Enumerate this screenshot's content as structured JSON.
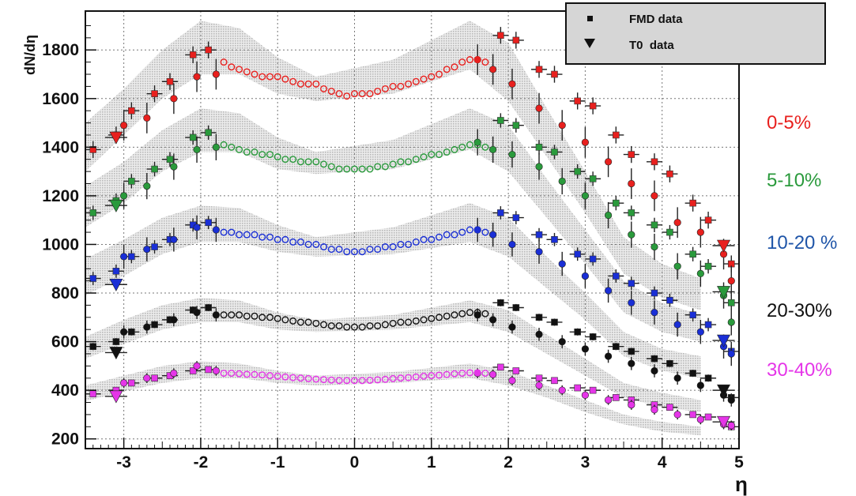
{
  "chart_data": {
    "type": "scatter",
    "title": "",
    "xlabel": "η",
    "ylabel": "dN/dη",
    "xlim": [
      -3.5,
      5.0
    ],
    "ylim": [
      160,
      1960
    ],
    "x_ticks": [
      "-3",
      "-2",
      "-1",
      "0",
      "1",
      "2",
      "3",
      "4",
      "5"
    ],
    "y_ticks": [
      "200",
      "400",
      "600",
      "800",
      "1000",
      "1200",
      "1400",
      "1600",
      "1800"
    ],
    "grid": true,
    "legend": {
      "position": "top-right",
      "entries": [
        {
          "label": "FMD data",
          "marker": "square"
        },
        {
          "label": "T0  data",
          "marker": "triangle-down"
        }
      ]
    },
    "series": [
      {
        "name": "0-5%",
        "color": "#e8201e",
        "fmd_x": [
          -3.4,
          -3.1,
          -2.9,
          -2.6,
          -2.4,
          -2.1,
          -1.9,
          1.9,
          2.1,
          2.4,
          2.6,
          2.9,
          3.1,
          3.4,
          3.6,
          3.9,
          4.1,
          4.4,
          4.6,
          4.9
        ],
        "fmd_y": [
          1390,
          1450,
          1550,
          1620,
          1670,
          1780,
          1800,
          1860,
          1840,
          1720,
          1700,
          1590,
          1570,
          1450,
          1370,
          1340,
          1290,
          1170,
          1100,
          920
        ],
        "spd_x": [
          -3.0,
          -2.7,
          -2.35,
          -2.05,
          -1.8,
          1.6,
          1.8,
          2.05,
          2.4,
          2.7,
          3.0,
          3.3,
          3.6,
          3.9,
          4.2,
          4.5,
          4.8,
          4.9
        ],
        "spd_y": [
          1490,
          1520,
          1600,
          1690,
          1700,
          1760,
          1720,
          1660,
          1560,
          1490,
          1420,
          1340,
          1250,
          1200,
          1090,
          1050,
          960,
          850
        ],
        "tpc_x": [
          -1.7,
          -1.6,
          -1.5,
          -1.4,
          -1.3,
          -1.2,
          -1.1,
          -1.0,
          -0.9,
          -0.8,
          -0.7,
          -0.6,
          -0.5,
          -0.4,
          -0.3,
          -0.2,
          -0.1,
          0.0,
          0.1,
          0.2,
          0.3,
          0.4,
          0.5,
          0.6,
          0.7,
          0.8,
          0.9,
          1.0,
          1.1,
          1.2,
          1.3,
          1.4,
          1.5,
          1.6,
          1.7
        ],
        "tpc_y": [
          1750,
          1730,
          1720,
          1710,
          1700,
          1690,
          1690,
          1690,
          1680,
          1670,
          1660,
          1660,
          1660,
          1640,
          1630,
          1620,
          1610,
          1620,
          1620,
          1620,
          1630,
          1640,
          1650,
          1650,
          1660,
          1670,
          1680,
          1690,
          1700,
          1720,
          1730,
          1750,
          1760,
          1760,
          1750
        ],
        "t0_x": [
          -3.1,
          4.8
        ],
        "t0_y": [
          1440,
          995
        ],
        "band_upper": [
          1500,
          1640,
          1800,
          1920,
          1890,
          1770,
          1690,
          1760,
          1920,
          1830,
          1560,
          1300,
          1030,
          920,
          860
        ],
        "band_lower": [
          1300,
          1450,
          1600,
          1700,
          1700,
          1620,
          1590,
          1620,
          1720,
          1590,
          1360,
          1130,
          880,
          780,
          730
        ]
      },
      {
        "name": "5-10%",
        "color": "#2a9a3c",
        "fmd_x": [
          -3.4,
          -3.1,
          -2.9,
          -2.6,
          -2.4,
          -2.1,
          -1.9,
          1.9,
          2.1,
          2.4,
          2.6,
          2.9,
          3.1,
          3.4,
          3.6,
          3.9,
          4.1,
          4.4,
          4.6,
          4.9
        ],
        "fmd_y": [
          1130,
          1180,
          1260,
          1310,
          1350,
          1440,
          1460,
          1510,
          1490,
          1400,
          1380,
          1300,
          1270,
          1170,
          1130,
          1080,
          1050,
          960,
          910,
          760
        ],
        "spd_x": [
          -3.0,
          -2.7,
          -2.35,
          -2.05,
          -1.8,
          1.6,
          1.8,
          2.05,
          2.4,
          2.7,
          3.0,
          3.3,
          3.6,
          3.9,
          4.2,
          4.5,
          4.8,
          4.9
        ],
        "spd_y": [
          1200,
          1240,
          1320,
          1390,
          1400,
          1420,
          1390,
          1370,
          1320,
          1260,
          1200,
          1120,
          1040,
          990,
          910,
          880,
          790,
          680
        ],
        "tpc_x": [
          -1.7,
          -1.6,
          -1.5,
          -1.4,
          -1.3,
          -1.2,
          -1.1,
          -1.0,
          -0.9,
          -0.8,
          -0.7,
          -0.6,
          -0.5,
          -0.4,
          -0.3,
          -0.2,
          -0.1,
          0.0,
          0.1,
          0.2,
          0.3,
          0.4,
          0.5,
          0.6,
          0.7,
          0.8,
          0.9,
          1.0,
          1.1,
          1.2,
          1.3,
          1.4,
          1.5,
          1.6,
          1.7
        ],
        "tpc_y": [
          1410,
          1400,
          1390,
          1380,
          1380,
          1370,
          1370,
          1360,
          1350,
          1350,
          1340,
          1340,
          1340,
          1330,
          1320,
          1310,
          1310,
          1310,
          1310,
          1310,
          1320,
          1320,
          1330,
          1340,
          1340,
          1350,
          1360,
          1370,
          1370,
          1380,
          1390,
          1400,
          1410,
          1410,
          1400
        ],
        "t0_x": [
          -3.1,
          4.8
        ],
        "t0_y": [
          1160,
          805
        ],
        "band_upper": [
          1240,
          1340,
          1470,
          1560,
          1540,
          1440,
          1380,
          1430,
          1560,
          1490,
          1270,
          1060,
          850,
          760,
          710
        ],
        "band_lower": [
          1070,
          1170,
          1300,
          1380,
          1380,
          1310,
          1290,
          1310,
          1390,
          1300,
          1110,
          920,
          720,
          640,
          600
        ]
      },
      {
        "name": "10-20 %",
        "color": "#1a2fd6",
        "label_color": "#1f55a8",
        "fmd_x": [
          -3.4,
          -3.1,
          -2.9,
          -2.6,
          -2.4,
          -2.1,
          -1.9,
          1.9,
          2.1,
          2.4,
          2.6,
          2.9,
          3.1,
          3.4,
          3.6,
          3.9,
          4.1,
          4.4,
          4.6,
          4.9
        ],
        "fmd_y": [
          860,
          890,
          950,
          990,
          1020,
          1080,
          1090,
          1130,
          1110,
          1040,
          1020,
          960,
          940,
          870,
          840,
          800,
          770,
          710,
          670,
          560
        ],
        "spd_x": [
          -3.0,
          -2.7,
          -2.35,
          -2.05,
          -1.8,
          1.6,
          1.8,
          2.05,
          2.4,
          2.7,
          3.0,
          3.3,
          3.6,
          3.9,
          4.2,
          4.5,
          4.8,
          4.9
        ],
        "spd_y": [
          950,
          980,
          1020,
          1070,
          1060,
          1060,
          1040,
          1000,
          970,
          920,
          870,
          810,
          760,
          720,
          670,
          640,
          580,
          550
        ],
        "tpc_x": [
          -1.7,
          -1.6,
          -1.5,
          -1.4,
          -1.3,
          -1.2,
          -1.1,
          -1.0,
          -0.9,
          -0.8,
          -0.7,
          -0.6,
          -0.5,
          -0.4,
          -0.3,
          -0.2,
          -0.1,
          0.0,
          0.1,
          0.2,
          0.3,
          0.4,
          0.5,
          0.6,
          0.7,
          0.8,
          0.9,
          1.0,
          1.1,
          1.2,
          1.3,
          1.4,
          1.5,
          1.6,
          1.7
        ],
        "tpc_y": [
          1050,
          1050,
          1040,
          1040,
          1040,
          1030,
          1030,
          1020,
          1020,
          1010,
          1010,
          1000,
          1000,
          990,
          980,
          980,
          970,
          970,
          970,
          980,
          980,
          990,
          990,
          1000,
          1000,
          1010,
          1020,
          1020,
          1030,
          1040,
          1040,
          1050,
          1060,
          1060,
          1050
        ],
        "t0_x": [
          -3.1,
          4.8
        ],
        "t0_y": [
          835,
          605
        ],
        "band_upper": [
          940,
          1020,
          1110,
          1160,
          1150,
          1080,
          1030,
          1070,
          1170,
          1110,
          950,
          800,
          640,
          570,
          540
        ],
        "band_lower": [
          790,
          870,
          960,
          1010,
          1010,
          970,
          950,
          960,
          1010,
          950,
          820,
          690,
          540,
          480,
          450
        ]
      },
      {
        "name": "20-30%",
        "color": "#111111",
        "fmd_x": [
          -3.4,
          -3.1,
          -2.9,
          -2.6,
          -2.4,
          -2.1,
          -1.9,
          1.9,
          2.1,
          2.4,
          2.6,
          2.9,
          3.1,
          3.4,
          3.6,
          3.9,
          4.1,
          4.4,
          4.6,
          4.9
        ],
        "fmd_y": [
          580,
          600,
          640,
          670,
          690,
          730,
          740,
          760,
          740,
          700,
          680,
          640,
          620,
          580,
          560,
          530,
          510,
          470,
          450,
          370
        ],
        "spd_x": [
          -3.0,
          -2.7,
          -2.35,
          -2.05,
          -1.8,
          1.6,
          1.8,
          2.05,
          2.4,
          2.7,
          3.0,
          3.3,
          3.6,
          3.9,
          4.2,
          4.5,
          4.8,
          4.9
        ],
        "spd_y": [
          640,
          660,
          690,
          720,
          710,
          710,
          690,
          660,
          630,
          600,
          570,
          540,
          510,
          480,
          450,
          420,
          380,
          360
        ],
        "tpc_x": [
          -1.7,
          -1.6,
          -1.5,
          -1.4,
          -1.3,
          -1.2,
          -1.1,
          -1.0,
          -0.9,
          -0.8,
          -0.7,
          -0.6,
          -0.5,
          -0.4,
          -0.3,
          -0.2,
          -0.1,
          0.0,
          0.1,
          0.2,
          0.3,
          0.4,
          0.5,
          0.6,
          0.7,
          0.8,
          0.9,
          1.0,
          1.1,
          1.2,
          1.3,
          1.4,
          1.5,
          1.6,
          1.7
        ],
        "tpc_y": [
          710,
          710,
          710,
          705,
          705,
          700,
          700,
          695,
          690,
          685,
          680,
          680,
          675,
          670,
          665,
          665,
          660,
          660,
          660,
          665,
          665,
          670,
          675,
          680,
          680,
          685,
          690,
          695,
          700,
          705,
          710,
          715,
          720,
          720,
          715
        ],
        "t0_x": [
          -3.1,
          4.8
        ],
        "t0_y": [
          555,
          400
        ],
        "band_upper": [
          620,
          690,
          750,
          780,
          770,
          720,
          690,
          710,
          770,
          730,
          630,
          530,
          430,
          390,
          360
        ],
        "band_lower": [
          530,
          590,
          650,
          680,
          680,
          650,
          640,
          650,
          680,
          640,
          550,
          460,
          370,
          330,
          310
        ]
      },
      {
        "name": "30-40%",
        "color": "#e535e8",
        "fmd_x": [
          -3.4,
          -3.1,
          -2.9,
          -2.6,
          -2.4,
          -2.1,
          -1.9,
          1.9,
          2.1,
          2.4,
          2.6,
          2.9,
          3.1,
          3.4,
          3.6,
          3.9,
          4.1,
          4.4,
          4.6,
          4.9
        ],
        "fmd_y": [
          385,
          400,
          430,
          450,
          460,
          480,
          485,
          495,
          480,
          450,
          440,
          410,
          400,
          370,
          360,
          340,
          330,
          300,
          290,
          250
        ],
        "spd_x": [
          -3.0,
          -2.7,
          -2.35,
          -2.05,
          -1.8,
          1.6,
          1.8,
          2.05,
          2.4,
          2.7,
          3.0,
          3.3,
          3.6,
          3.9,
          4.2,
          4.5,
          4.8,
          4.9
        ],
        "spd_y": [
          430,
          450,
          470,
          500,
          480,
          470,
          465,
          440,
          420,
          400,
          380,
          360,
          340,
          320,
          300,
          280,
          260,
          255
        ],
        "tpc_x": [
          -1.7,
          -1.6,
          -1.5,
          -1.4,
          -1.3,
          -1.2,
          -1.1,
          -1.0,
          -0.9,
          -0.8,
          -0.7,
          -0.6,
          -0.5,
          -0.4,
          -0.3,
          -0.2,
          -0.1,
          0.0,
          0.1,
          0.2,
          0.3,
          0.4,
          0.5,
          0.6,
          0.7,
          0.8,
          0.9,
          1.0,
          1.1,
          1.2,
          1.3,
          1.4,
          1.5,
          1.6,
          1.7
        ],
        "tpc_y": [
          470,
          470,
          468,
          466,
          465,
          463,
          460,
          458,
          455,
          452,
          450,
          448,
          446,
          444,
          442,
          440,
          440,
          440,
          440,
          441,
          443,
          445,
          448,
          450,
          452,
          455,
          458,
          460,
          462,
          465,
          468,
          470,
          472,
          472,
          470
        ],
        "t0_x": [
          -3.1,
          4.8
        ],
        "t0_y": [
          375,
          270
        ],
        "band_upper": [
          420,
          460,
          500,
          520,
          510,
          480,
          460,
          475,
          510,
          480,
          420,
          360,
          300,
          270,
          250
        ],
        "band_lower": [
          355,
          395,
          430,
          450,
          450,
          430,
          420,
          430,
          450,
          420,
          370,
          310,
          260,
          230,
          215
        ]
      }
    ]
  }
}
